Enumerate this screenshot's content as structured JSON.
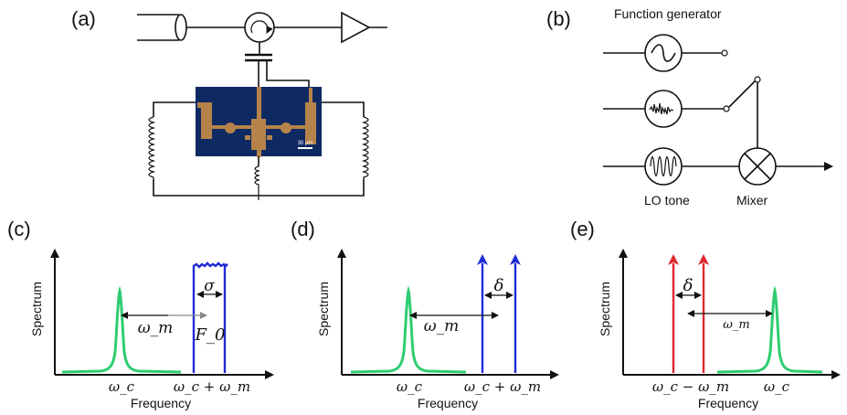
{
  "panels": {
    "a": {
      "label": "(a)",
      "scale_bar": "30 µm"
    },
    "b": {
      "label": "(b)",
      "title": "Function generator",
      "lo_label": "LO tone",
      "mixer_label": "Mixer"
    },
    "c": {
      "label": "(c)",
      "ylabel": "Spectrum",
      "xlabel": "Frequency",
      "tick1": "ω_c",
      "tick2": "ω_c + ω_m",
      "sigma": "σ",
      "omega": "ω_m",
      "f0": "F_0"
    },
    "d": {
      "label": "(d)",
      "ylabel": "Spectrum",
      "xlabel": "Frequency",
      "tick1": "ω_c",
      "tick2": "ω_c + ω_m",
      "delta": "δ",
      "omega": "ω_m"
    },
    "e": {
      "label": "(e)",
      "ylabel": "Spectrum",
      "xlabel": "Frequency",
      "tick1": "ω_c − ω_m",
      "tick2": "ω_c",
      "delta": "δ",
      "omega": "ω_m"
    }
  },
  "colors": {
    "resonance": "#2ecc71",
    "drive_blue": "#1f2bd6",
    "drive_red": "#e0282e",
    "chip": "#0f2a63",
    "metal": "#b5834a"
  }
}
